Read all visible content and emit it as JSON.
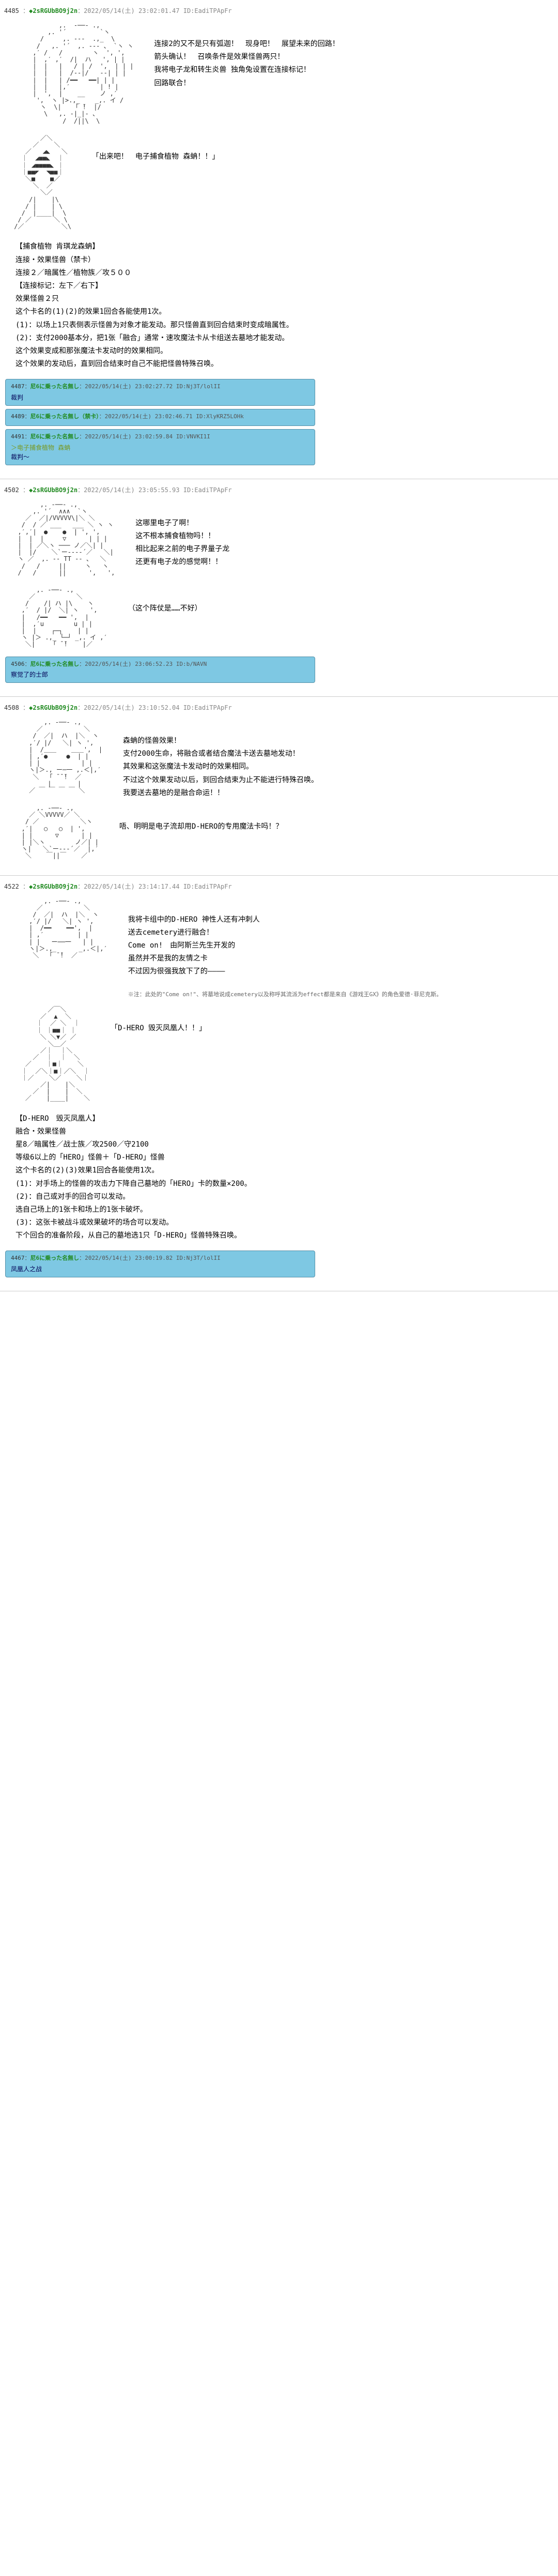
{
  "colors": {
    "bg": "#ffffff",
    "reply_bg": "#7ec8e3",
    "reply_border": "#5590a8",
    "trip": "#228b22",
    "quote": "#789922",
    "meta": "#888888",
    "text": "#000000"
  },
  "typography": {
    "body_size": 14,
    "ascii_size": 12,
    "meta_size": 12,
    "reply_size": 12,
    "ascii_line_height": 1.1,
    "body_line_height": 1.8
  },
  "posts": [
    {
      "num": "4485",
      "trip": "◆2sRGUbBO9j2n",
      "date": "2022/05/14(土) 23:02:01.47",
      "id": "ID:EadiTPApFr",
      "segments": [
        {
          "type": "ascii_row",
          "ascii": "             ,.  -──- .,\n          ,. '´         `ヽ\n        /     ,. -‐-  .,_  \\\n       /   ,. '´  ,. -‐- 、 `ヽ ヽ\n      ,′ /   /        ヽ  ', ',\n      |  ,′ ,′  /|  ハ   ', | |\n      |  |   |   / | /  ',  | | |\n      |  |   |  /‐-|/   -‐| | |\n      |  |   | /━━   ━━| | |\n      |  |   |,′        | ! |\n      |  ',  |    __    ノ ,′\n       ',  ヽ |>.,_    _,. イ /\n        ヽ  \\|   「 ̄!  |/\n         \\   ,. -|_|- 、\n              /  /||\\  \\",
          "side": "连接2的又不是只有弧迦！　现身吧！　展望未来的回路！\n箭头确认！　召唤条件是效果怪兽两只！\n我将电子龙和转生炎兽 独角兔设置在连接标记！\n回路联合！"
        },
        {
          "type": "ascii_row",
          "ascii": "        ／＼\n      ／    ＼\n    ／   ◢◣   ＼\n   ｜  ◢■■◣  ｜\n   ｜ ◢■■■■◣ ｜\n   ｜■■◤  ◥■■｜\n    ＼■    ■／\n      ＼  ／\n        ＼／\n     /|    |\\\n    / |    | \\\n   /  |____|  \\\n  / ／      ＼ \\\n /／          ＼\\",
          "side": "「出来吧！　电子捕食植物 森蚺！！」"
        },
        {
          "type": "card",
          "title": "【捕食植物 肯琪龙森蚺】",
          "lines": [
            "连接・效果怪兽（禁卡）",
            "连接２／暗属性／植物族／攻５００",
            "【连接标记：左下／右下】",
            "效果怪兽２只",
            "这个卡名的(1)(2)的效果1回合各能使用1次。",
            "(1)：以场上1只表侧表示怪兽为对象才能发动。那只怪兽直到回合结束时变成暗属性。",
            "(2)：支付2000基本分，把1张「融合」通常・速攻魔法卡从卡组送去墓地才能发动。",
            "这个效果变成和那张魔法卡发动时的效果相同。",
            "这个效果的发动后，直到回合结束时自己不能把怪兽特殊召唤。"
          ]
        }
      ],
      "replies": [
        {
          "num": "4487",
          "name": "尼6に乗った名無し",
          "date": "2022/05/14(土) 23:02:27.72",
          "id": "ID:Nj3T/lolII",
          "body": "裁判"
        },
        {
          "num": "4489",
          "name": "尼6に乗った名無し（禁卡）",
          "date": "2022/05/14(土) 23:02:46.71",
          "id": "ID:XlyKRZ5LOHk",
          "body": ""
        },
        {
          "num": "4491",
          "name": "尼6に乗った名無し",
          "date": "2022/05/14(土) 23:02:59.84",
          "id": "ID:VNVKI1I",
          "body_quote": "＞电子捕食植物 森蚺",
          "body": "裁判～"
        }
      ]
    },
    {
      "num": "4502",
      "trip": "◆2sRGUbBO9j2n",
      "date": "2022/05/14(土) 23:05:55.93",
      "id": "ID:EadiTPApFr",
      "segments": [
        {
          "type": "ascii_row",
          "ascii": "        ,. -──- .,\n      ,. '´  ∧∧∧  `ヽ\n    ／  ／|/VVVVV\\|＼ ＼\n   /  / ／ ___   ___ ＼ ヽ ヽ\n  ,′,′|  ●    ●  | ', ',\n  |  |  |     ▽      | | |\n  |  | ／＼ヽ ─── ノ／＼| |\n  |  |/    ＼`ー---‐´／   ＼|\n  ヽ ／  ,. -- TT -- 、  ＼\n   /   /     ||     ヽ   ヽ\n  /   /      ||      ',   ',",
          "side": "这哪里电子了啊！\n这不根本捕食植物吗！！\n相比起来之前的电子界量子龙\n还更有电子龙的感觉啊！！"
        },
        {
          "type": "ascii_row",
          "ascii": "       ,. -──- .,\n     ／           ＼\n    /    /| ハ |\\    ヽ\n   ,′  / |/  ＼| ヽ   ',\n   |   /━━   ━━ ',  |\n   |  ,′u        u | |\n   |  |    ┌─┐    | |\n   ヽ |＞ .,_ └─┘ _,. イ ,′\n    ＼|    「 ̄ ̄!    |／",
          "side": "（这个阵仗是……不好）"
        }
      ],
      "replies": [
        {
          "num": "4506",
          "name": "尼6に乗った名無し",
          "date": "2022/05/14(土) 23:06:52.23",
          "id": "ID:b/NAVN",
          "body": "察觉了的士郎"
        }
      ]
    },
    {
      "num": "4508",
      "trip": "◆2sRGUbBO9j2n",
      "date": "2022/05/14(土) 23:10:52.04",
      "id": "ID:EadiTPApFr",
      "segments": [
        {
          "type": "ascii_row",
          "ascii": "         ,. -──- .,\n       ／           ＼\n      /  ／|  ハ  |＼  ヽ\n     ,′/ |/   ＼| ヽ ',\n     |  /＿＿    ＿＿',  |\n     | ,′●     ●  | |\n     | |           | |\n     ヽ|＞., ー─一 ,.＜|,′\n      ＼  「 ̄ ̄ ̄!  ／\n          |       |\n     ／ ￣ ￣ ￣ ￣ ＼",
          "side": "森蚺的怪兽效果！\n支付2000生命，将融合或者结合魔法卡送去墓地发动！\n其效果和这张魔法卡发动时的效果相同。\n不过这个效果发动以后，到回合结束为止不能进行特殊召唤。\n我要送去墓地的是融合命运！！"
        },
        {
          "type": "ascii_row",
          "ascii": "       ,. -──- .,\n     ／ ＼VVVVV／ ＼\n    / ／           ＼ヽ\n   ,′|   ○   ○  | ',\n   | |      ▽      | |\n   | |＼ヽ        ノ／| |\n   ヽ|   ＼`ー--‐´／  |,′\n    ＼    ￣||￣    ／",
          "side": "唔、明明是电子流却用D-HERO的专用魔法卡吗！？"
        }
      ],
      "replies": []
    },
    {
      "num": "4522",
      "trip": "◆2sRGUbBO9j2n",
      "date": "2022/05/14(土) 23:14:17.44",
      "id": "ID:EadiTPApFr",
      "segments": [
        {
          "type": "ascii_row",
          "ascii": "         ,. -──- .,\n       ／           ＼\n      /  ／|  ハ  |＼  ヽ\n     ,′/ |/   ＼| ヽ ',\n     |  /━━    ━━',  |\n     | ,′         | |\n     | |   ー──一   | |\n     ヽ|＞.,_      _,.＜|,′\n      ＼  「 ̄ ̄!  ／",
          "side": "我将卡组中的D-HERO 神性人还有冲刺人\n送去cemetery进行融合！\nCome on!　由阿斯兰先生开发的\n虽然并不是我的友情之卡\n不过因为很强我放下了的————",
          "note_title": "※注：此处的\"Come on!\"、将墓地说成cemetery以及称呼其流派为effect都是来自《游戏王GX》的角色爱德·菲尼克斯。"
        },
        {
          "type": "ascii_row",
          "ascii": "          ／￣＼\n        ／  ▲  ＼\n       ｜  ／ ＼  ｜\n       ｜ ｜■■｜ ｜\n        ＼ ＼▼／ ／\n          ＼＿／\n        ／｜  ｜＼\n      ／  ｜  ｜  ＼\n    ／    ｜■｜    ＼\n   ｜  ／＼｜■｜／＼  ｜\n   ｜／    ＼／    ＼｜\n        ／|    |＼\n      ／  |    |  ＼\n    ／    |____|    ＼",
          "side": "「D-HERO 毁灭凤凰人！！」"
        },
        {
          "type": "card",
          "title": "【D-HERO　毁灭凤凰人】",
          "lines": [
            "融合・效果怪兽",
            "星8／暗属性／战士族／攻2500／守2100",
            "等级6以上的「HERO」怪兽＋「D-HERO」怪兽",
            "这个卡名的(2)(3)效果1回合各能使用1次。",
            "(1)：对手场上的怪兽的攻击力下降自己墓地的「HERO」卡的数量×200。",
            "(2)：自己或对手的回合可以发动。",
            "选自己场上的1张卡和场上的1张卡破坏。",
            "(3)：这张卡被战斗或效果破坏的场合可以发动。",
            "下个回合的准备阶段，从自己的墓地选1只「D-HERO」怪兽特殊召唤。"
          ]
        }
      ],
      "replies": [
        {
          "num": "4467",
          "name": "尼6に乗った名無し",
          "date": "2022/05/14(土) 23:00:19.82",
          "id": "ID:Nj3T/lolII",
          "body": "凤凰人之战"
        }
      ]
    }
  ]
}
